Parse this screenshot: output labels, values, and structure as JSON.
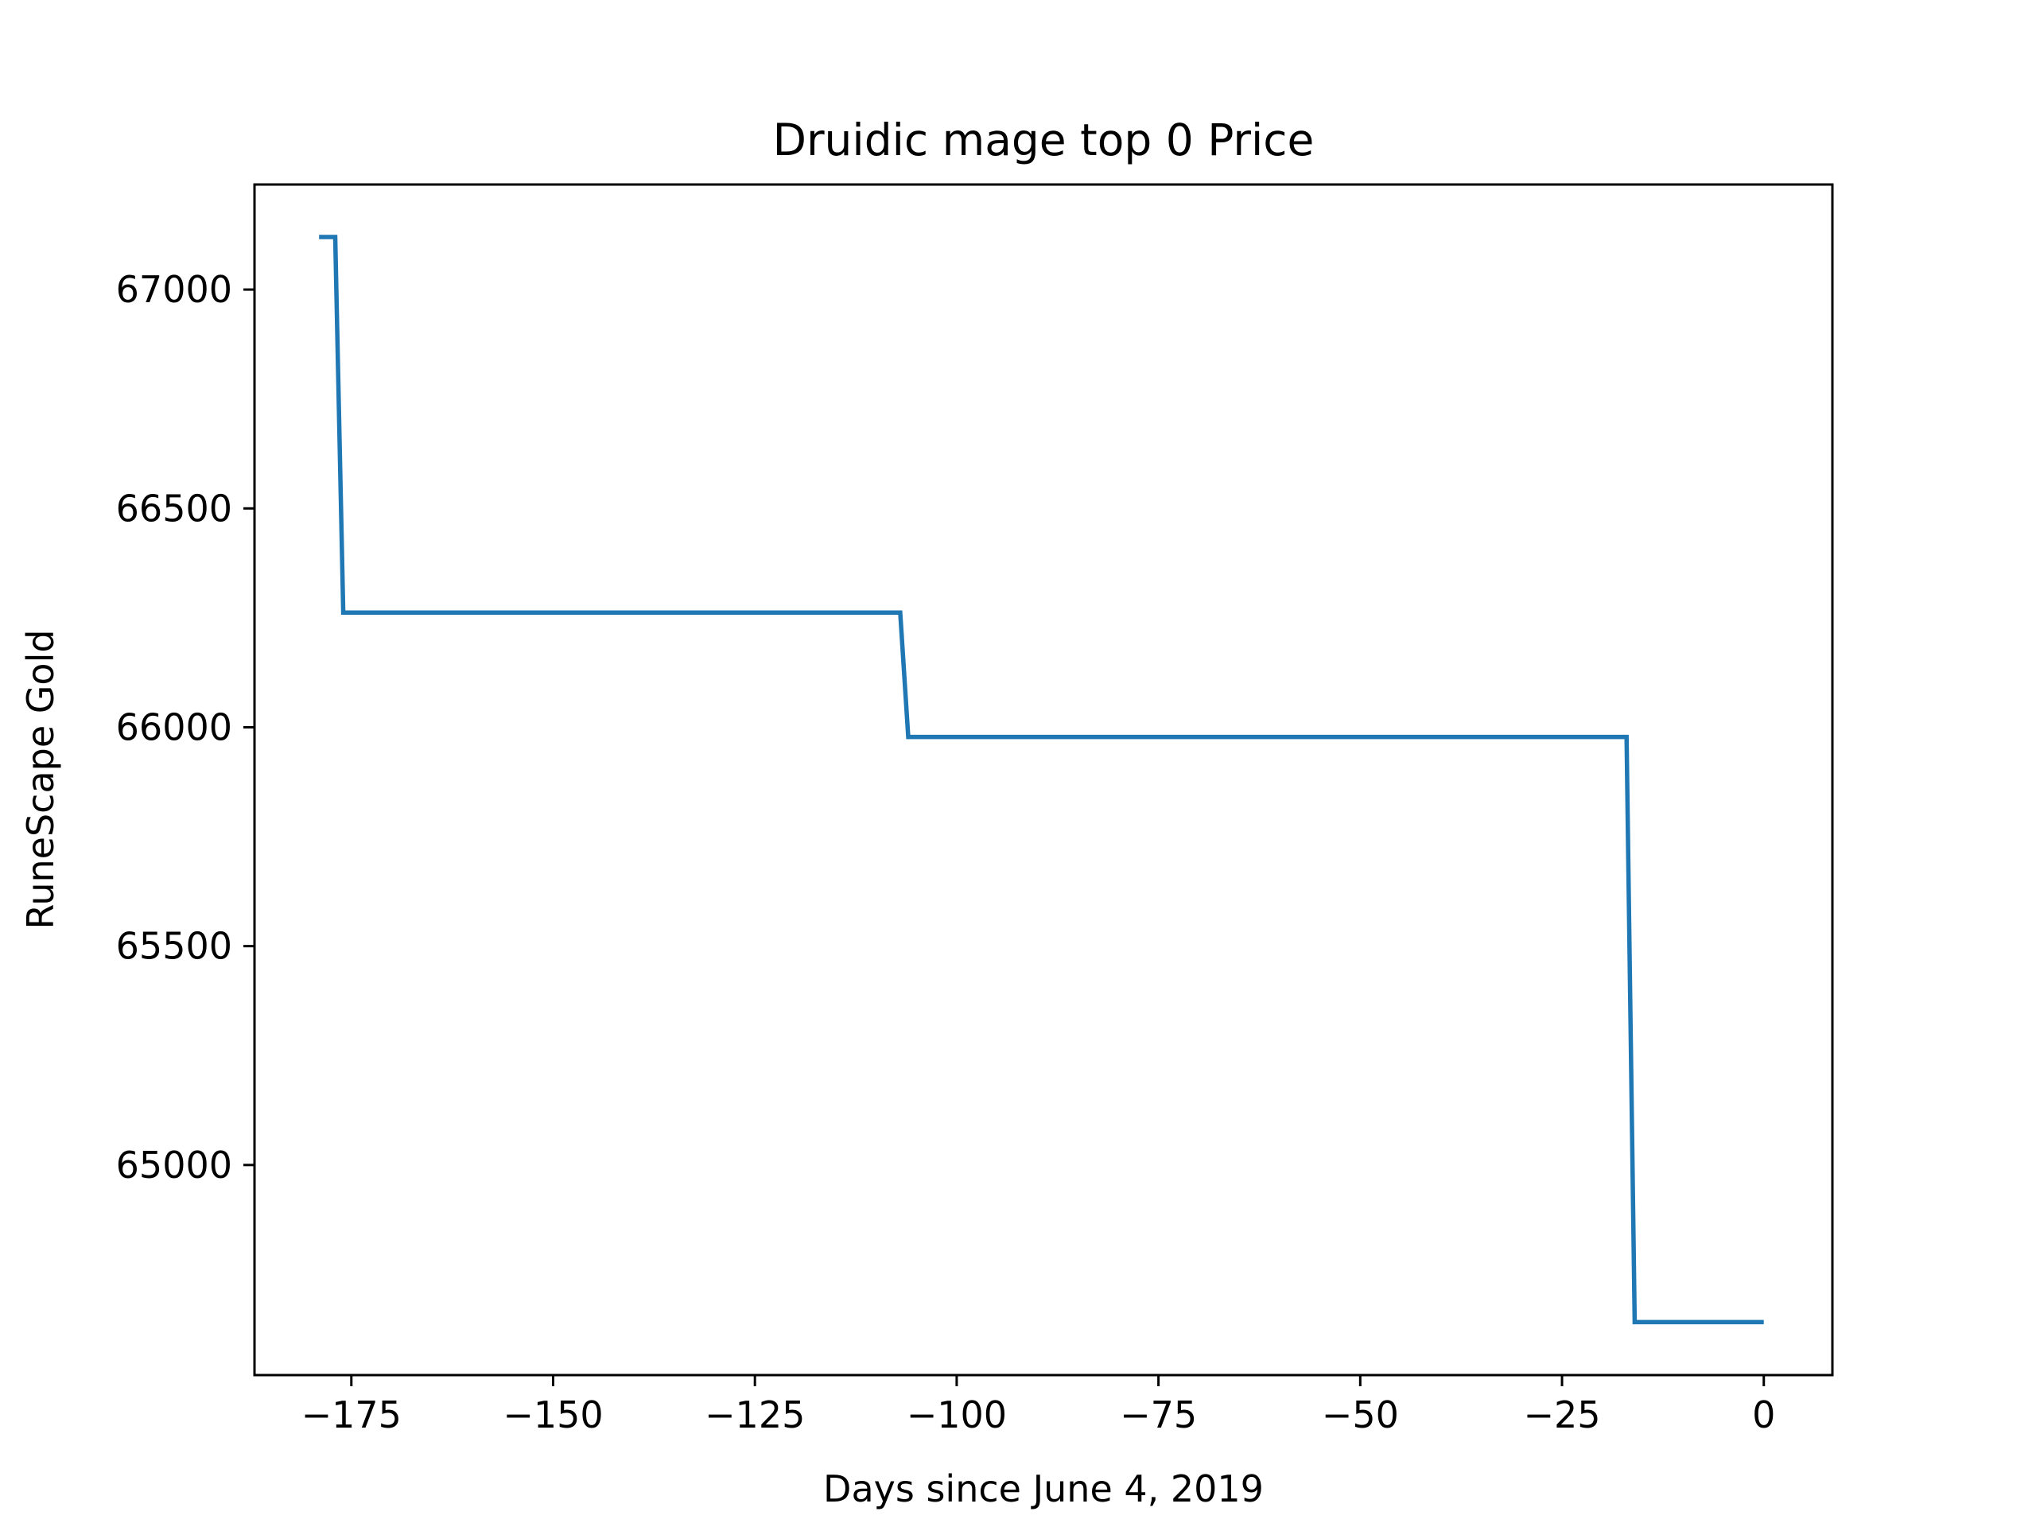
{
  "chart_data": {
    "type": "line",
    "title": "Druidic mage top 0 Price",
    "xlabel": "Days since June 4, 2019",
    "ylabel": "RuneScape Gold",
    "xlim": [
      -187,
      8.5
    ],
    "ylim": [
      64520,
      67240
    ],
    "xticks": [
      -175,
      -150,
      -125,
      -100,
      -75,
      -50,
      -25,
      0
    ],
    "xtick_labels": [
      "−175",
      "−150",
      "−125",
      "−100",
      "−75",
      "−50",
      "−25",
      "0"
    ],
    "yticks": [
      65000,
      65500,
      66000,
      66500,
      67000
    ],
    "ytick_labels": [
      "65000",
      "65500",
      "66000",
      "66500",
      "67000"
    ],
    "grid": false,
    "legend": "none",
    "series": [
      {
        "color": "#1f77b4",
        "x": [
          -179,
          -178,
          -177,
          -176,
          -107,
          -106,
          -17,
          -16,
          0
        ],
        "y": [
          67120,
          67120,
          67120,
          66262,
          66262,
          65978,
          65978,
          64641,
          64641
        ]
      }
    ]
  }
}
